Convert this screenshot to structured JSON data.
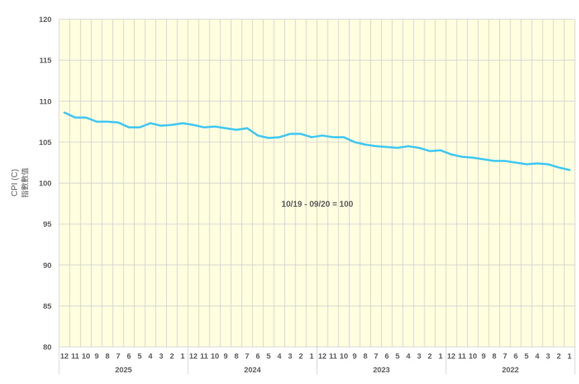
{
  "chart_data": {
    "type": "line",
    "title": "",
    "ylabel": "CPI (C)",
    "ylabel_sub": "指數數值",
    "xlabel": "",
    "ylim": [
      80,
      120
    ],
    "yticks": [
      80,
      85,
      90,
      95,
      100,
      105,
      110,
      115,
      120
    ],
    "grid": true,
    "legend": null,
    "plot_background": "#ffffe0",
    "grid_color": "#d0d0d0",
    "line_color": "#3fc7f4",
    "annotation": "10/19 - 09/20 = 100",
    "year_groups": [
      {
        "year": "2025",
        "months": [
          "12",
          "11",
          "10",
          "9",
          "8",
          "7",
          "6",
          "5",
          "4",
          "3",
          "2",
          "1"
        ]
      },
      {
        "year": "2024",
        "months": [
          "12",
          "11",
          "10",
          "9",
          "8",
          "7",
          "6",
          "5",
          "4",
          "3",
          "2",
          "1"
        ]
      },
      {
        "year": "2023",
        "months": [
          "12",
          "11",
          "10",
          "9",
          "8",
          "7",
          "6",
          "5",
          "4",
          "3",
          "2",
          "1"
        ]
      },
      {
        "year": "2022",
        "months": [
          "12",
          "11",
          "10",
          "9",
          "8",
          "7",
          "6",
          "5",
          "4",
          "3",
          "2",
          "1"
        ]
      }
    ],
    "series": [
      {
        "name": "CPI (C)",
        "values": [
          108.6,
          108.0,
          108.0,
          107.5,
          107.5,
          107.4,
          106.8,
          106.8,
          107.3,
          107.0,
          107.1,
          107.3,
          107.1,
          106.8,
          106.9,
          106.7,
          106.5,
          106.7,
          105.8,
          105.5,
          105.6,
          106.0,
          106.0,
          105.6,
          105.8,
          105.6,
          105.6,
          105.0,
          104.7,
          104.5,
          104.4,
          104.3,
          104.5,
          104.3,
          103.9,
          104.0,
          103.5,
          103.2,
          103.1,
          102.9,
          102.7,
          102.7,
          102.5,
          102.3,
          102.4,
          102.3,
          101.9,
          101.6
        ]
      }
    ]
  }
}
